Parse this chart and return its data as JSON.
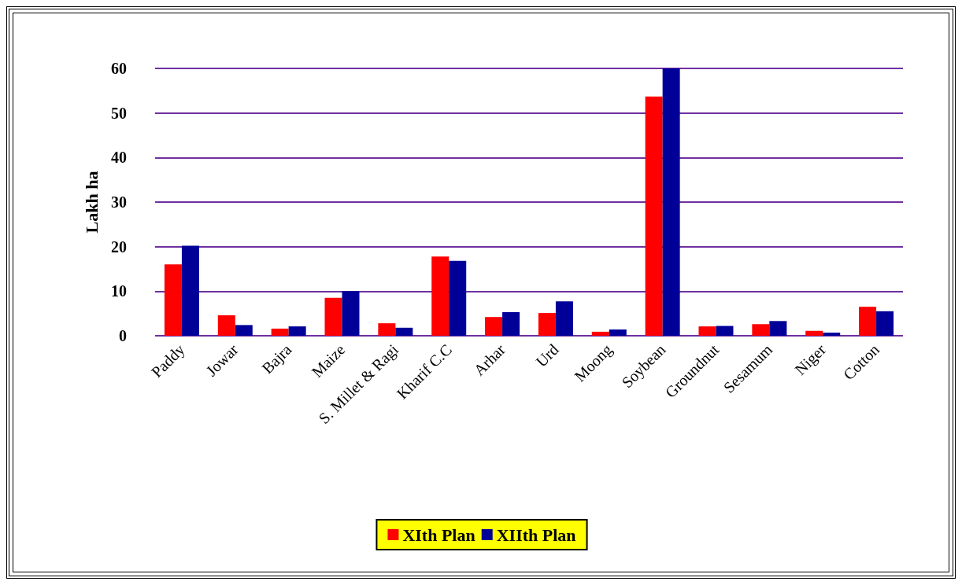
{
  "chart_data": {
    "type": "bar",
    "ylabel": "Lakh ha",
    "categories": [
      "Paddy",
      "Jowar",
      "Bajra",
      "Maize",
      "S. Millet & Ragi",
      "Kharif C.C",
      "Arhar",
      "Urd",
      "Moong",
      "Soybean",
      "Groundnut",
      "Sesamum",
      "Niger",
      "Cotton"
    ],
    "series": [
      {
        "name": "XIth Plan",
        "color": "#ff0000",
        "values": [
          16,
          4.6,
          1.6,
          8.5,
          2.8,
          17.8,
          4.2,
          5.1,
          0.9,
          53.7,
          2.1,
          2.6,
          1.1,
          6.5
        ]
      },
      {
        "name": "XIIth Plan",
        "color": "#000099",
        "values": [
          20.2,
          2.4,
          2.1,
          10,
          1.8,
          16.8,
          5.3,
          7.7,
          1.4,
          60,
          2.2,
          3.3,
          0.7,
          5.5
        ]
      }
    ],
    "ylim": [
      0,
      60
    ],
    "yticks": [
      0,
      10,
      20,
      30,
      40,
      50,
      60
    ],
    "grid": "y",
    "legend": "bottom"
  }
}
